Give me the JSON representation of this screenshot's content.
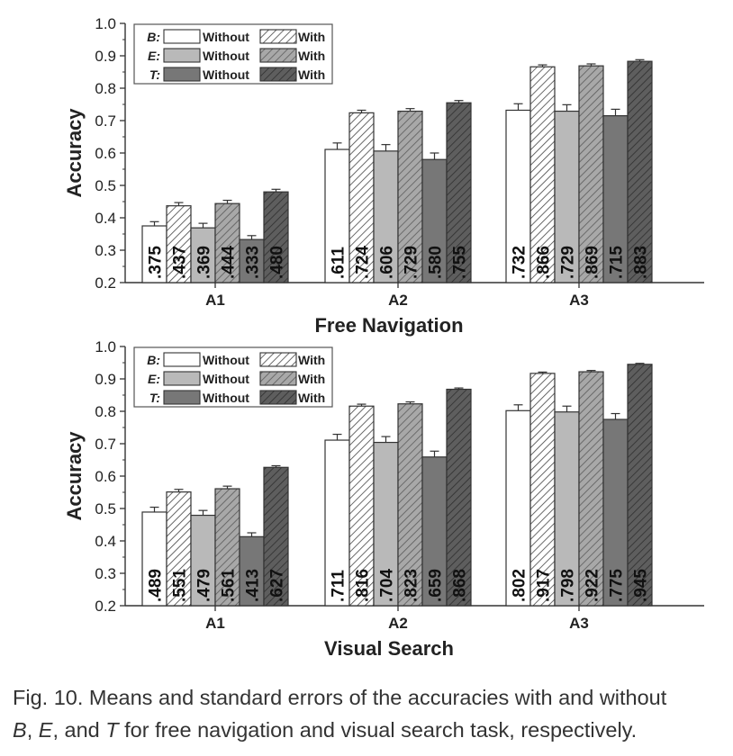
{
  "chart_data": [
    {
      "type": "bar",
      "xlabel": "Free Navigation",
      "ylabel": "Accuracy",
      "ylim": [
        0.2,
        1.0
      ],
      "yticks": [
        "0.2",
        "0.3",
        "0.4",
        "0.5",
        "0.6",
        "0.7",
        "0.8",
        "0.9",
        "1.0"
      ],
      "categories": [
        "A1",
        "A2",
        "A3"
      ],
      "legend_position": "top-left",
      "series": [
        {
          "name": "B: Without",
          "values": [
            0.375,
            0.611,
            0.732
          ],
          "labels": [
            ".375",
            ".611",
            ".732"
          ],
          "errors": [
            0.013,
            0.02,
            0.02
          ]
        },
        {
          "name": "B: With",
          "values": [
            0.437,
            0.724,
            0.866
          ],
          "labels": [
            ".437",
            ".724",
            ".866"
          ],
          "errors": [
            0.01,
            0.008,
            0.006
          ]
        },
        {
          "name": "E: Without",
          "values": [
            0.369,
            0.606,
            0.729
          ],
          "labels": [
            ".369",
            ".606",
            ".729"
          ],
          "errors": [
            0.014,
            0.02,
            0.02
          ]
        },
        {
          "name": "E: With",
          "values": [
            0.444,
            0.729,
            0.869
          ],
          "labels": [
            ".444",
            ".729",
            ".869"
          ],
          "errors": [
            0.01,
            0.008,
            0.006
          ]
        },
        {
          "name": "T: Without",
          "values": [
            0.333,
            0.58,
            0.715
          ],
          "labels": [
            ".333",
            ".580",
            ".715"
          ],
          "errors": [
            0.012,
            0.02,
            0.02
          ]
        },
        {
          "name": "T: With",
          "values": [
            0.48,
            0.755,
            0.883
          ],
          "labels": [
            ".480",
            ".755",
            ".883"
          ],
          "errors": [
            0.008,
            0.007,
            0.005
          ]
        }
      ]
    },
    {
      "type": "bar",
      "xlabel": "Visual Search",
      "ylabel": "Accuracy",
      "ylim": [
        0.2,
        1.0
      ],
      "yticks": [
        "0.2",
        "0.3",
        "0.4",
        "0.5",
        "0.6",
        "0.7",
        "0.8",
        "0.9",
        "1.0"
      ],
      "categories": [
        "A1",
        "A2",
        "A3"
      ],
      "legend_position": "top-left",
      "series": [
        {
          "name": "B: Without",
          "values": [
            0.489,
            0.711,
            0.802
          ],
          "labels": [
            ".489",
            ".711",
            ".802"
          ],
          "errors": [
            0.015,
            0.018,
            0.018
          ]
        },
        {
          "name": "B: With",
          "values": [
            0.551,
            0.816,
            0.917
          ],
          "labels": [
            ".551",
            ".816",
            ".917"
          ],
          "errors": [
            0.008,
            0.006,
            0.004
          ]
        },
        {
          "name": "E: Without",
          "values": [
            0.479,
            0.704,
            0.798
          ],
          "labels": [
            ".479",
            ".704",
            ".798"
          ],
          "errors": [
            0.015,
            0.018,
            0.018
          ]
        },
        {
          "name": "E: With",
          "values": [
            0.561,
            0.823,
            0.922
          ],
          "labels": [
            ".561",
            ".823",
            ".922"
          ],
          "errors": [
            0.008,
            0.006,
            0.004
          ]
        },
        {
          "name": "T: Without",
          "values": [
            0.413,
            0.659,
            0.775
          ],
          "labels": [
            ".413",
            ".659",
            ".775"
          ],
          "errors": [
            0.012,
            0.018,
            0.018
          ]
        },
        {
          "name": "T: With",
          "values": [
            0.627,
            0.868,
            0.945
          ],
          "labels": [
            ".627",
            ".868",
            ".945"
          ],
          "errors": [
            0.005,
            0.004,
            0.003
          ]
        }
      ]
    }
  ],
  "legend": {
    "rows": [
      {
        "key": "B:",
        "without": "Without",
        "with": "With"
      },
      {
        "key": "E:",
        "without": "Without",
        "with": "With"
      },
      {
        "key": "T:",
        "without": "Without",
        "with": "With"
      }
    ]
  },
  "style": {
    "colors": {
      "B": "#ffffff",
      "E": "#b9b9b9",
      "T": "#777777",
      "stroke": "#333333"
    }
  },
  "caption": {
    "prefix": "Fig. 10. Means and standard errors of the accuracies with and without",
    "b": "B",
    "sep1": ", ",
    "e": "E",
    "sep2": ", and ",
    "t": "T",
    "suffix": " for free navigation and visual search task, respectively."
  }
}
